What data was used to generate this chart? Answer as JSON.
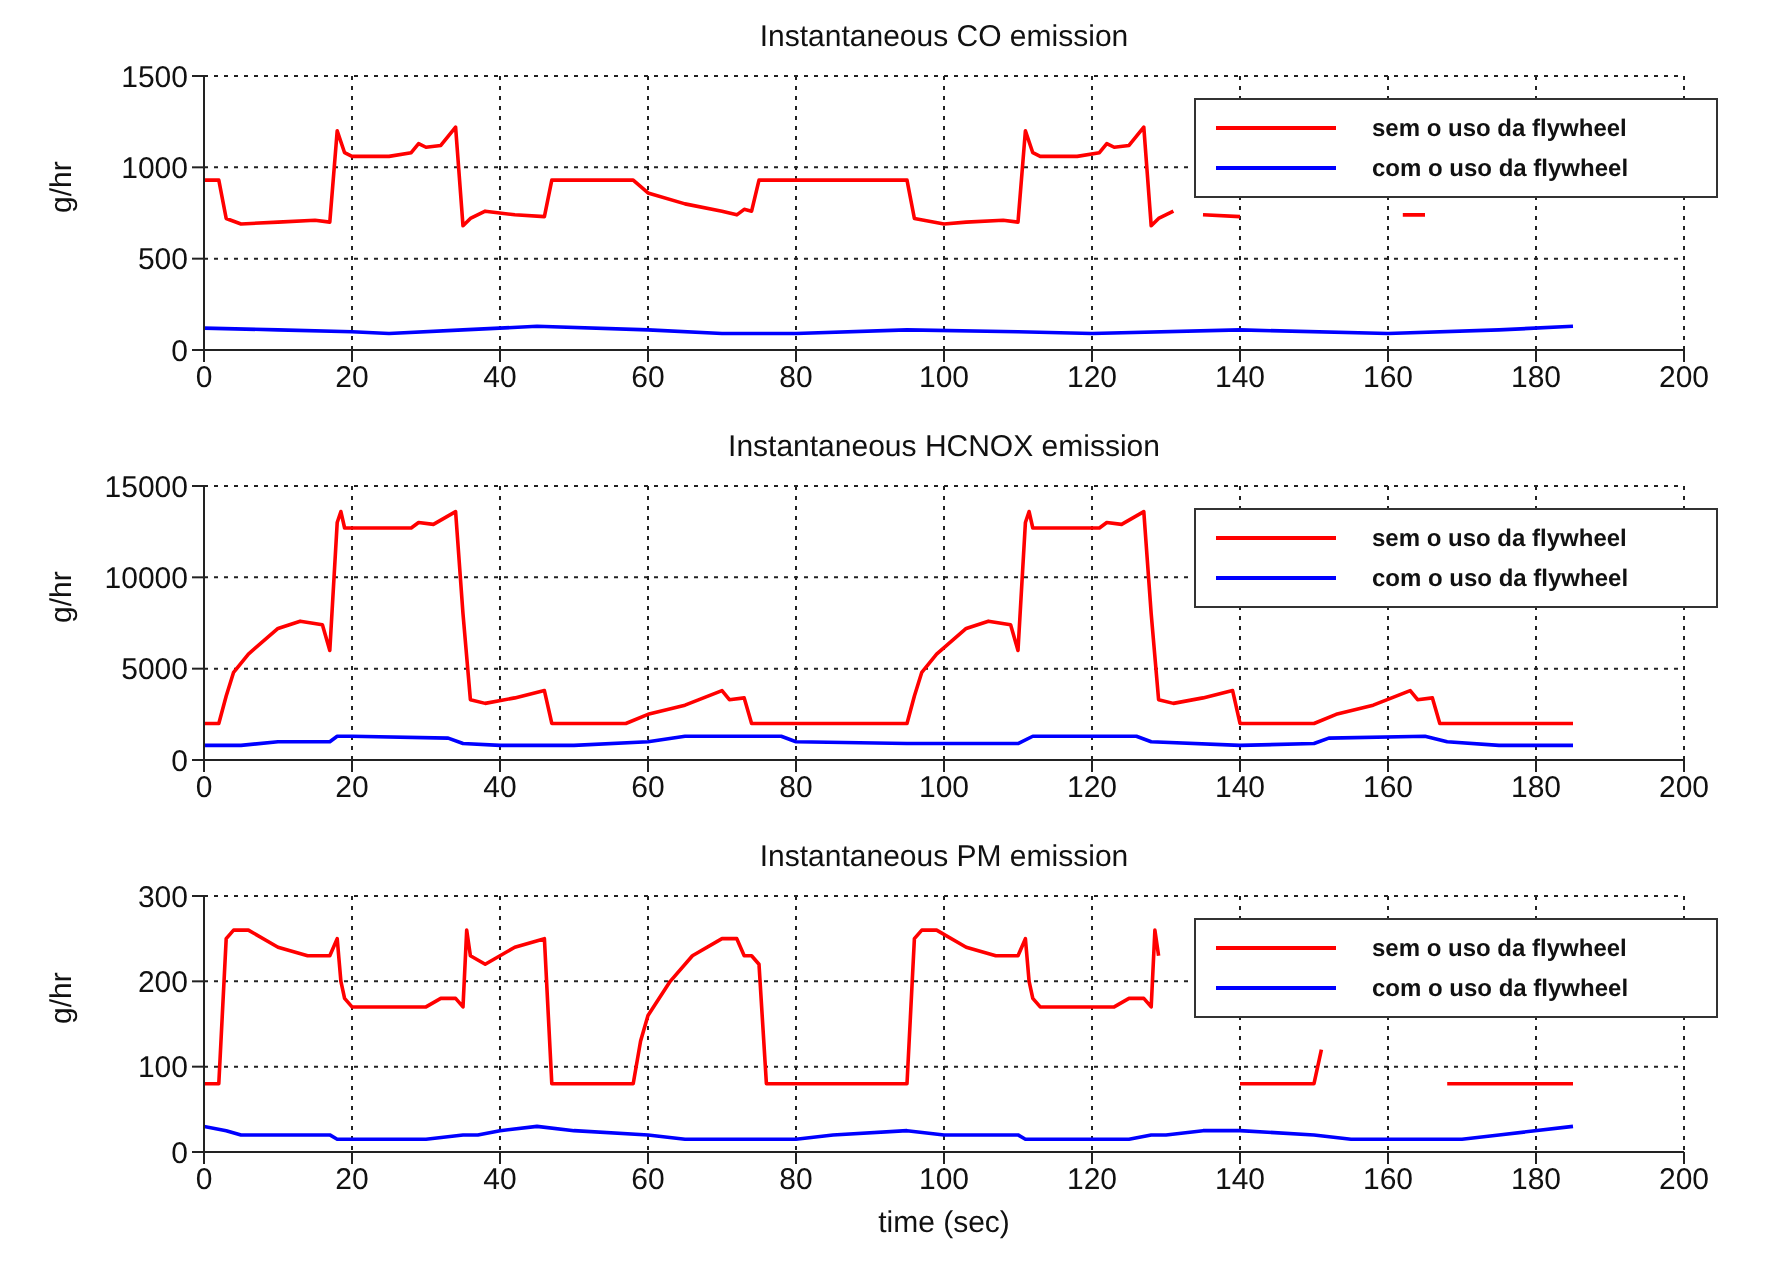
{
  "chart_data": [
    {
      "type": "line",
      "title": "Instantaneous CO emission",
      "ylabel": "g/hr",
      "xlim": [
        0,
        200
      ],
      "xticks": [
        0,
        20,
        40,
        60,
        80,
        100,
        120,
        140,
        160,
        180,
        200
      ],
      "ylim": [
        0,
        1500
      ],
      "yticks": [
        0,
        500,
        1000,
        1500
      ],
      "grid": true,
      "legend": "top right",
      "series": [
        {
          "name": "sem o uso da flywheel",
          "color": "#ff0000",
          "x": [
            0,
            2,
            3,
            5,
            10,
            15,
            17,
            18,
            19,
            20,
            25,
            28,
            29,
            30,
            32,
            34,
            35,
            36,
            38,
            42,
            46,
            47,
            58,
            60,
            65,
            70,
            72,
            73,
            74,
            75,
            95,
            96,
            100,
            103,
            108,
            110,
            111,
            112,
            113,
            118,
            121,
            122,
            123,
            125,
            127,
            128,
            129,
            131,
            132,
            135,
            140,
            141,
            161,
            162,
            165
          ],
          "values": [
            930,
            930,
            720,
            690,
            700,
            710,
            700,
            1200,
            1080,
            1060,
            1060,
            1080,
            1130,
            1110,
            1120,
            1220,
            680,
            720,
            760,
            740,
            730,
            930,
            930,
            860,
            800,
            760,
            740,
            770,
            760,
            930,
            930,
            720,
            690,
            700,
            710,
            700,
            1200,
            1080,
            1060,
            1060,
            1080,
            1130,
            1110,
            1120,
            1220,
            680,
            720,
            760,
            null,
            740,
            730,
            null,
            null,
            740,
            740
          ]
        },
        {
          "name": "com o uso da flywheel",
          "color": "#0000ff",
          "x": [
            0,
            10,
            20,
            25,
            35,
            45,
            60,
            70,
            80,
            95,
            110,
            120,
            140,
            160,
            175,
            185
          ],
          "values": [
            120,
            110,
            100,
            90,
            110,
            130,
            110,
            90,
            90,
            110,
            100,
            90,
            110,
            90,
            110,
            130
          ]
        }
      ]
    },
    {
      "type": "line",
      "title": "Instantaneous HCNOX emission",
      "ylabel": "g/hr",
      "xlim": [
        0,
        200
      ],
      "xticks": [
        0,
        20,
        40,
        60,
        80,
        100,
        120,
        140,
        160,
        180,
        200
      ],
      "ylim": [
        0,
        15000
      ],
      "yticks": [
        0,
        5000,
        10000,
        15000
      ],
      "grid": true,
      "legend": "top right",
      "series": [
        {
          "name": "sem o uso da flywheel",
          "color": "#ff0000",
          "x": [
            0,
            2,
            3,
            4,
            6,
            10,
            13,
            16,
            17,
            18,
            18.5,
            19,
            28,
            29,
            31,
            34,
            35,
            36,
            38,
            42,
            46,
            47,
            57,
            60,
            65,
            70,
            71,
            73,
            74,
            95,
            96,
            97,
            99,
            103,
            106,
            109,
            110,
            111,
            111.5,
            112,
            121,
            122,
            124,
            127,
            128,
            129,
            131,
            135,
            139,
            140,
            150,
            153,
            158,
            163,
            164,
            166,
            167,
            185
          ],
          "values": [
            2000,
            2000,
            3500,
            4800,
            5800,
            7200,
            7600,
            7400,
            6000,
            13000,
            13600,
            12700,
            12700,
            13000,
            12900,
            13600,
            8000,
            3300,
            3100,
            3400,
            3800,
            2000,
            2000,
            2500,
            3000,
            3800,
            3300,
            3400,
            2000,
            2000,
            3500,
            4800,
            5800,
            7200,
            7600,
            7400,
            6000,
            13000,
            13600,
            12700,
            12700,
            13000,
            12900,
            13600,
            8000,
            3300,
            3100,
            3400,
            3800,
            2000,
            2000,
            2500,
            3000,
            3800,
            3300,
            3400,
            2000,
            2000
          ]
        },
        {
          "name": "com o uso da flywheel",
          "color": "#0000ff",
          "x": [
            0,
            5,
            10,
            17,
            18,
            20,
            33,
            35,
            40,
            50,
            60,
            65,
            78,
            80,
            95,
            110,
            112,
            126,
            128,
            140,
            150,
            152,
            165,
            168,
            175,
            185
          ],
          "values": [
            800,
            800,
            1000,
            1000,
            1300,
            1300,
            1200,
            900,
            800,
            800,
            1000,
            1300,
            1300,
            1000,
            900,
            900,
            1300,
            1300,
            1000,
            800,
            900,
            1200,
            1300,
            1000,
            800,
            800
          ]
        }
      ]
    },
    {
      "type": "line",
      "title": "Instantaneous PM emission",
      "xlabel": "time (sec)",
      "ylabel": "g/hr",
      "xlim": [
        0,
        200
      ],
      "xticks": [
        0,
        20,
        40,
        60,
        80,
        100,
        120,
        140,
        160,
        180,
        200
      ],
      "ylim": [
        0,
        300
      ],
      "yticks": [
        0,
        100,
        200,
        300
      ],
      "grid": true,
      "legend": "top right",
      "series": [
        {
          "name": "sem o uso da flywheel",
          "color": "#ff0000",
          "x": [
            0,
            2,
            3,
            4,
            6,
            10,
            14,
            17,
            18,
            18.5,
            19,
            20,
            30,
            32,
            34,
            35,
            35.5,
            36,
            38,
            42,
            46,
            47,
            58,
            59,
            60,
            63,
            66,
            70,
            72,
            73,
            74,
            75,
            76,
            95,
            96,
            97,
            99,
            103,
            107,
            110,
            111,
            111.5,
            112,
            113,
            123,
            125,
            127,
            128,
            128.5,
            129,
            130,
            140,
            150,
            151,
            152,
            168,
            185
          ],
          "values": [
            80,
            80,
            250,
            260,
            260,
            240,
            230,
            230,
            250,
            200,
            180,
            170,
            170,
            180,
            180,
            170,
            260,
            230,
            220,
            240,
            250,
            80,
            80,
            130,
            160,
            200,
            230,
            250,
            250,
            230,
            230,
            220,
            80,
            80,
            250,
            260,
            260,
            240,
            230,
            230,
            250,
            200,
            180,
            170,
            170,
            180,
            180,
            170,
            260,
            230,
            null,
            80,
            80,
            120,
            null,
            80,
            80
          ]
        },
        {
          "name": "com o uso da flywheel",
          "color": "#0000ff",
          "x": [
            0,
            3,
            5,
            17,
            18,
            30,
            35,
            37,
            40,
            45,
            50,
            60,
            65,
            80,
            85,
            95,
            100,
            110,
            111,
            125,
            128,
            130,
            135,
            140,
            150,
            155,
            170,
            175,
            185
          ],
          "values": [
            30,
            25,
            20,
            20,
            15,
            15,
            20,
            20,
            25,
            30,
            25,
            20,
            15,
            15,
            20,
            25,
            20,
            20,
            15,
            15,
            20,
            20,
            25,
            25,
            20,
            15,
            15,
            20,
            30
          ]
        }
      ]
    }
  ]
}
